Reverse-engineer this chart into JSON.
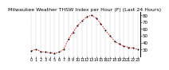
{
  "title": "Milwaukee Weather THSW Index per Hour (F) (Last 24 Hours)",
  "background_color": "#ffffff",
  "line_color": "#cc0000",
  "marker_color": "#000000",
  "grid_color": "#888888",
  "x_values": [
    0,
    1,
    2,
    3,
    4,
    5,
    6,
    7,
    8,
    9,
    10,
    11,
    12,
    13,
    14,
    15,
    16,
    17,
    18,
    19,
    20,
    21,
    22,
    23
  ],
  "y_values": [
    28,
    30,
    27,
    26,
    25,
    24,
    26,
    30,
    45,
    55,
    65,
    72,
    78,
    80,
    76,
    68,
    58,
    50,
    42,
    38,
    35,
    33,
    32,
    30
  ],
  "ylim": [
    20,
    85
  ],
  "yticks": [
    30,
    40,
    50,
    60,
    70,
    80
  ],
  "ylabel_fontsize": 4.0,
  "xlabel_fontsize": 3.5,
  "title_fontsize": 4.5,
  "line_width": 0.6,
  "marker_size": 2.0
}
